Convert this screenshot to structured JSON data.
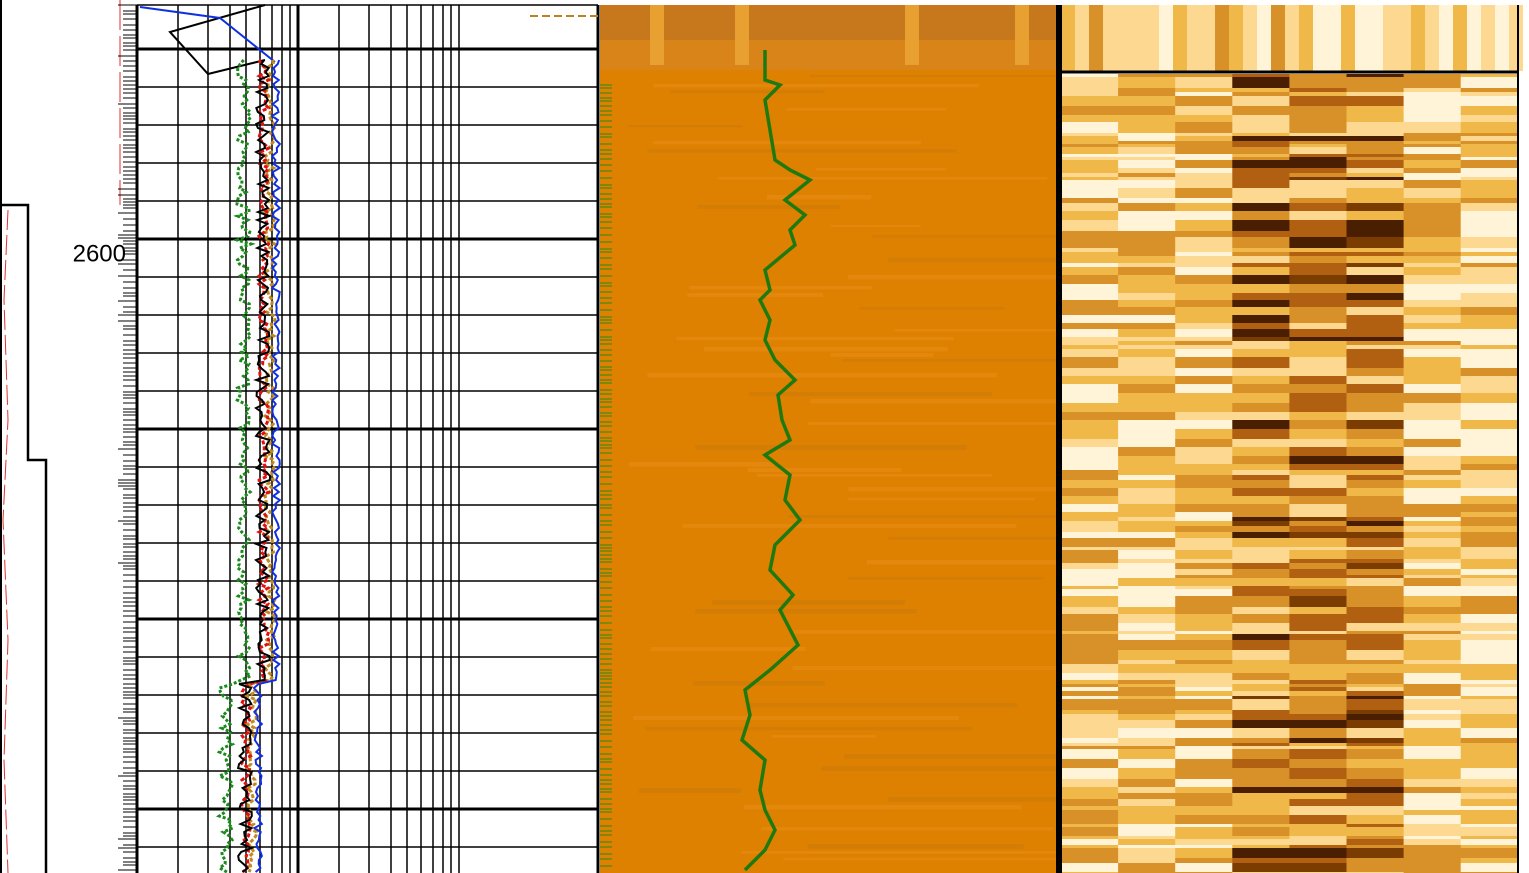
{
  "depth_label": "2600"
}
